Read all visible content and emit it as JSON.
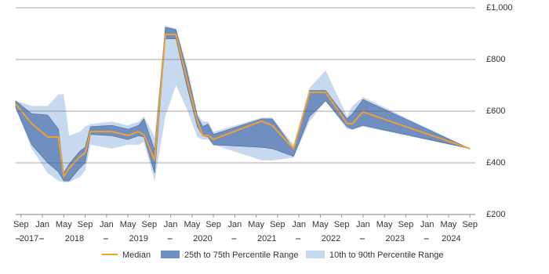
{
  "chart_data": {
    "type": "line",
    "x": [
      "2017-08",
      "2017-11",
      "2018-02",
      "2018-04",
      "2018-05",
      "2018-06",
      "2018-08",
      "2018-09",
      "2018-10",
      "2019-02",
      "2019-05",
      "2019-07",
      "2019-08",
      "2019-10",
      "2019-12",
      "2020-02",
      "2020-04",
      "2020-06",
      "2020-07",
      "2020-08",
      "2020-09",
      "2021-06",
      "2021-08",
      "2021-12",
      "2022-03",
      "2022-06",
      "2022-10",
      "2022-11",
      "2023-01",
      "2024-09"
    ],
    "series": [
      {
        "name": "10th to 90th Percentile Range",
        "color": "#c6d9ee",
        "low": [
          610,
          455,
          360,
          330,
          325,
          325,
          345,
          370,
          470,
          455,
          470,
          470,
          480,
          330,
          580,
          700,
          610,
          500,
          490,
          490,
          470,
          410,
          410,
          420,
          560,
          640,
          530,
          530,
          540,
          455
        ],
        "high": [
          640,
          620,
          620,
          665,
          665,
          505,
          520,
          540,
          550,
          560,
          545,
          560,
          580,
          500,
          930,
          920,
          780,
          590,
          560,
          560,
          520,
          575,
          575,
          470,
          690,
          758,
          580,
          620,
          655,
          455
        ]
      },
      {
        "name": "25th to 75th Percentile Range",
        "color": "#6f8fc0",
        "low": [
          615,
          470,
          400,
          365,
          330,
          330,
          380,
          400,
          510,
          505,
          490,
          505,
          500,
          360,
          880,
          880,
          700,
          540,
          505,
          500,
          470,
          460,
          455,
          425,
          580,
          640,
          540,
          530,
          545,
          455
        ],
        "high": [
          640,
          590,
          585,
          530,
          360,
          395,
          445,
          460,
          540,
          545,
          530,
          545,
          570,
          450,
          925,
          915,
          760,
          580,
          540,
          550,
          510,
          570,
          570,
          455,
          680,
          680,
          570,
          590,
          645,
          455
        ]
      },
      {
        "name": "Median",
        "color": "#f0a030",
        "values": [
          627,
          552,
          500,
          500,
          348,
          379,
          424,
          439,
          521,
          521,
          506,
          521,
          509,
          409,
          897,
          897,
          727,
          561,
          506,
          506,
          491,
          561,
          545,
          455,
          673,
          673,
          552,
          552,
          597,
          455
        ]
      }
    ],
    "xlim": [
      "2017-08",
      "2024-10"
    ],
    "xticks": [
      {
        "value": "2017-09",
        "label": "Sep"
      },
      {
        "value": "2018-01",
        "label": "Jan"
      },
      {
        "value": "2018-05",
        "label": "May"
      },
      {
        "value": "2018-09",
        "label": "Sep"
      },
      {
        "value": "2019-01",
        "label": "Jan"
      },
      {
        "value": "2019-05",
        "label": "May"
      },
      {
        "value": "2019-09",
        "label": "Sep"
      },
      {
        "value": "2020-01",
        "label": "Jan"
      },
      {
        "value": "2020-05",
        "label": "May"
      },
      {
        "value": "2020-09",
        "label": "Sep"
      },
      {
        "value": "2021-01",
        "label": "Jan"
      },
      {
        "value": "2021-05",
        "label": "May"
      },
      {
        "value": "2021-09",
        "label": "Sep"
      },
      {
        "value": "2022-01",
        "label": "Jan"
      },
      {
        "value": "2022-05",
        "label": "May"
      },
      {
        "value": "2022-09",
        "label": "Sep"
      },
      {
        "value": "2023-01",
        "label": "Jan"
      },
      {
        "value": "2023-05",
        "label": "May"
      },
      {
        "value": "2023-09",
        "label": "Sep"
      },
      {
        "value": "2024-01",
        "label": "Jan"
      },
      {
        "value": "2024-05",
        "label": "May"
      },
      {
        "value": "2024-09",
        "label": "Sep"
      }
    ],
    "year_labels": [
      "2017",
      "2018",
      "2019",
      "2020",
      "2021",
      "2022",
      "2023",
      "2024"
    ],
    "ylim": [
      200,
      1000
    ],
    "yticks": [
      {
        "value": 200,
        "label": "£200"
      },
      {
        "value": 400,
        "label": "£400"
      },
      {
        "value": 600,
        "label": "£600"
      },
      {
        "value": 800,
        "label": "£800"
      },
      {
        "value": 1000,
        "label": "£1,000"
      }
    ],
    "grid": true
  }
}
